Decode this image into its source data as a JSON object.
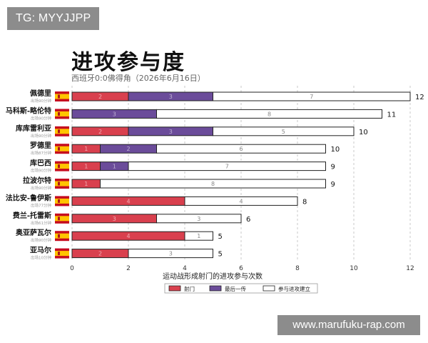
{
  "watermark": "TG: MYYJJPP",
  "site": "www.marufuku-rap.com",
  "chart_data": {
    "type": "bar",
    "orientation": "horizontal",
    "stacked": true,
    "title": "进攻参与度",
    "subtitle": "西班牙0:0佛得角（2026年6月16日）",
    "xlabel": "运动战形成射门的进攻参与次数",
    "xlim": [
      0,
      12
    ],
    "xticks": [
      0,
      2,
      4,
      6,
      8,
      10,
      12
    ],
    "grid": "vertical-dashed",
    "legend_position": "bottom",
    "colors": {
      "shots": "#d9404e",
      "last_pass": "#6b4c9a",
      "buildup": "#ffffff"
    },
    "categories": [
      "佩德里",
      "马科斯-略伦特",
      "库库雷利亚",
      "罗德里",
      "库巴西",
      "拉波尔特",
      "法比安-鲁伊斯",
      "费兰-托雷斯",
      "奥亚萨瓦尔",
      "亚马尔"
    ],
    "minutes": [
      "出场90分钟",
      "出场90分钟",
      "出场90分钟",
      "出场87分钟",
      "出场90分钟",
      "出场90分钟",
      "出场77分钟",
      "出场61分钟",
      "出场90分钟",
      "出场10分钟"
    ],
    "series": [
      {
        "name": "射门",
        "values": [
          2,
          0,
          2,
          1,
          1,
          1,
          4,
          3,
          4,
          2
        ]
      },
      {
        "name": "最后一传",
        "values": [
          3,
          3,
          3,
          2,
          1,
          0,
          0,
          0,
          0,
          0
        ]
      },
      {
        "name": "参与进攻建立",
        "values": [
          7,
          8,
          5,
          6,
          7,
          8,
          4,
          3,
          1,
          3
        ]
      }
    ],
    "totals": [
      12,
      11,
      10,
      10,
      9,
      9,
      8,
      6,
      5,
      5
    ]
  }
}
